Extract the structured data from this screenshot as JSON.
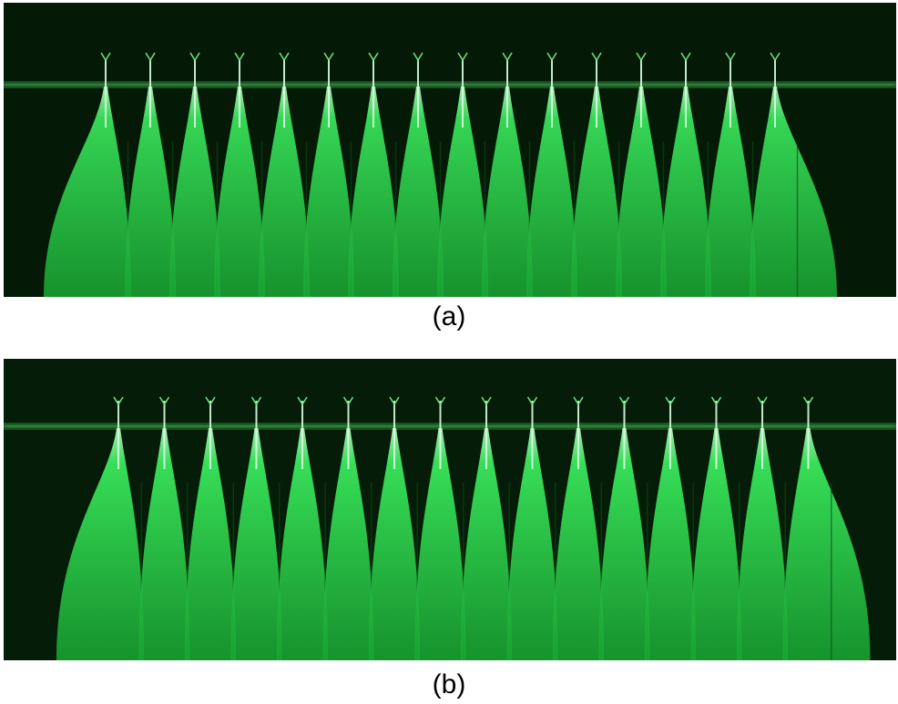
{
  "figure": {
    "panels": [
      {
        "caption": "(a)",
        "spray_count": 16,
        "glow_color": "#39e05a",
        "background_color": "#041a07"
      },
      {
        "caption": "(b)",
        "spray_count": 16,
        "glow_color": "#3ae85c",
        "background_color": "#051c08"
      }
    ]
  }
}
